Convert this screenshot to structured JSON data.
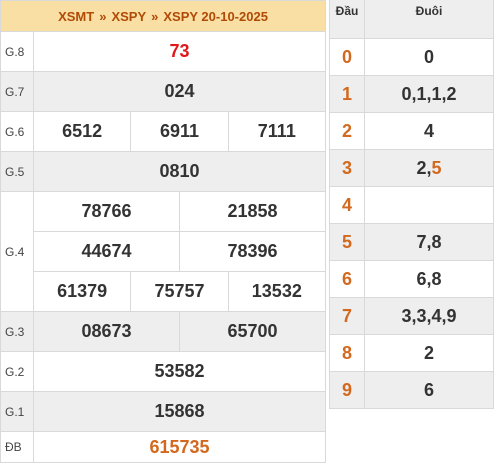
{
  "header": {
    "link1": "XSMT",
    "link2": "XSPY",
    "title": "XSPY 20-10-2025",
    "separator": "»"
  },
  "prizes": [
    {
      "label": "G.8",
      "lines": [
        [
          "73"
        ]
      ]
    },
    {
      "label": "G.7",
      "lines": [
        [
          "024"
        ]
      ]
    },
    {
      "label": "G.6",
      "lines": [
        [
          "6512",
          "6911",
          "7111"
        ]
      ]
    },
    {
      "label": "G.5",
      "lines": [
        [
          "0810"
        ]
      ]
    },
    {
      "label": "G.4",
      "lines": [
        [
          "78766",
          "21858"
        ],
        [
          "44674",
          "78396"
        ],
        [
          "61379",
          "75757",
          "13532"
        ]
      ]
    },
    {
      "label": "G.3",
      "lines": [
        [
          "08673",
          "65700"
        ]
      ]
    },
    {
      "label": "G.2",
      "lines": [
        [
          "53582"
        ]
      ]
    },
    {
      "label": "G.1",
      "lines": [
        [
          "15868"
        ]
      ]
    },
    {
      "label": "ĐB",
      "lines": [
        [
          "615735"
        ]
      ]
    }
  ],
  "loto": {
    "head_label": "Đầu",
    "tail_label": "Đuôi",
    "rows": [
      {
        "head": "0",
        "tail": "0"
      },
      {
        "head": "1",
        "tail": "0,1,1,2"
      },
      {
        "head": "2",
        "tail": "4"
      },
      {
        "head": "3",
        "tail": "2,",
        "tail_highlight": "5"
      },
      {
        "head": "4",
        "tail": ""
      },
      {
        "head": "5",
        "tail": "7,8"
      },
      {
        "head": "6",
        "tail": "6,8"
      },
      {
        "head": "7",
        "tail": "3,3,4,9"
      },
      {
        "head": "8",
        "tail": "2"
      },
      {
        "head": "9",
        "tail": "6"
      }
    ]
  },
  "colors": {
    "header_bg": "#f9dfa4",
    "link": "#b14a06",
    "red": "#e0181b",
    "orange": "#d2691e"
  }
}
